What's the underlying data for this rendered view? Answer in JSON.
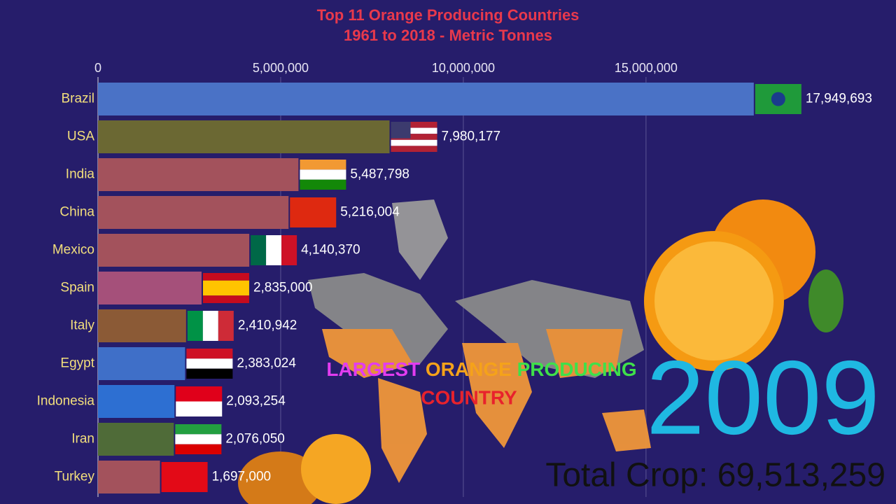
{
  "chart_data": {
    "type": "bar",
    "title": "Top 11 Orange Producing Countries",
    "subtitle": "1961 to 2018 - Metric Tonnes",
    "categories": [
      "Brazil",
      "USA",
      "India",
      "China",
      "Mexico",
      "Spain",
      "Italy",
      "Egypt",
      "Indonesia",
      "Iran",
      "Turkey"
    ],
    "values": [
      17949693,
      7980177,
      5487798,
      5216004,
      4140370,
      2835000,
      2410942,
      2383024,
      2093254,
      2076050,
      1697000
    ],
    "value_labels": [
      "17,949,693",
      "7,980,177",
      "5,487,798",
      "5,216,004",
      "4,140,370",
      "2,835,000",
      "2,410,942",
      "2,383,024",
      "2,093,254",
      "2,076,050",
      "1,697,000"
    ],
    "colors": [
      "#4a72c6",
      "#6b6833",
      "#a3525c",
      "#a3525c",
      "#a3525c",
      "#a5507a",
      "#8b5a36",
      "#3f6fc8",
      "#2d6fd2",
      "#4f6b38",
      "#a3525c"
    ],
    "xlim": [
      0,
      18700000
    ],
    "xticks": [
      0,
      {
        "value": 5000000,
        "label": "5,000,000"
      },
      {
        "value": 10000000,
        "label": "10,000,000"
      },
      {
        "value": 15000000,
        "label": "15,000,000"
      }
    ],
    "grid": true,
    "annotation": [
      "LARGEST",
      "ORANGE",
      "PRODUCING",
      "COUNTRY"
    ],
    "year": "2009",
    "total": "Total Crop: 69,513,259"
  }
}
